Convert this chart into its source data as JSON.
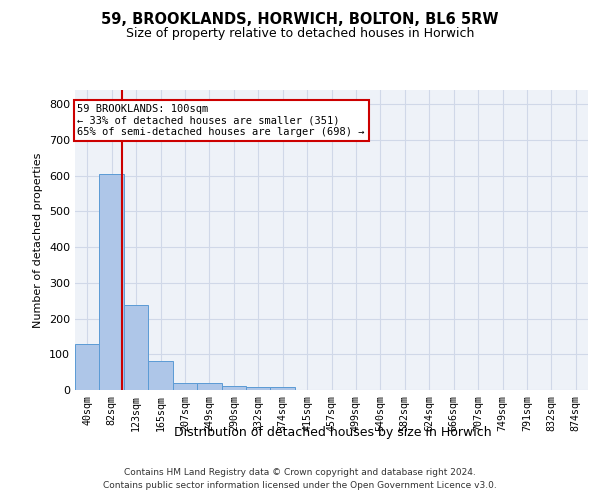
{
  "title_line1": "59, BROOKLANDS, HORWICH, BOLTON, BL6 5RW",
  "title_line2": "Size of property relative to detached houses in Horwich",
  "xlabel": "Distribution of detached houses by size in Horwich",
  "ylabel": "Number of detached properties",
  "bin_labels": [
    "40sqm",
    "82sqm",
    "123sqm",
    "165sqm",
    "207sqm",
    "249sqm",
    "290sqm",
    "332sqm",
    "374sqm",
    "415sqm",
    "457sqm",
    "499sqm",
    "540sqm",
    "582sqm",
    "624sqm",
    "666sqm",
    "707sqm",
    "749sqm",
    "791sqm",
    "832sqm",
    "874sqm"
  ],
  "bar_values": [
    128,
    605,
    237,
    80,
    20,
    20,
    10,
    8,
    8,
    0,
    0,
    0,
    0,
    0,
    0,
    0,
    0,
    0,
    0,
    0,
    0
  ],
  "bar_color": "#aec6e8",
  "bar_edge_color": "#5b9bd5",
  "grid_color": "#d0d8e8",
  "bg_color": "#eef2f8",
  "vline_x": 1.44,
  "vline_color": "#cc0000",
  "annotation_text": "59 BROOKLANDS: 100sqm\n← 33% of detached houses are smaller (351)\n65% of semi-detached houses are larger (698) →",
  "ylim": [
    0,
    840
  ],
  "yticks": [
    0,
    100,
    200,
    300,
    400,
    500,
    600,
    700,
    800
  ],
  "footer_line1": "Contains HM Land Registry data © Crown copyright and database right 2024.",
  "footer_line2": "Contains public sector information licensed under the Open Government Licence v3.0."
}
